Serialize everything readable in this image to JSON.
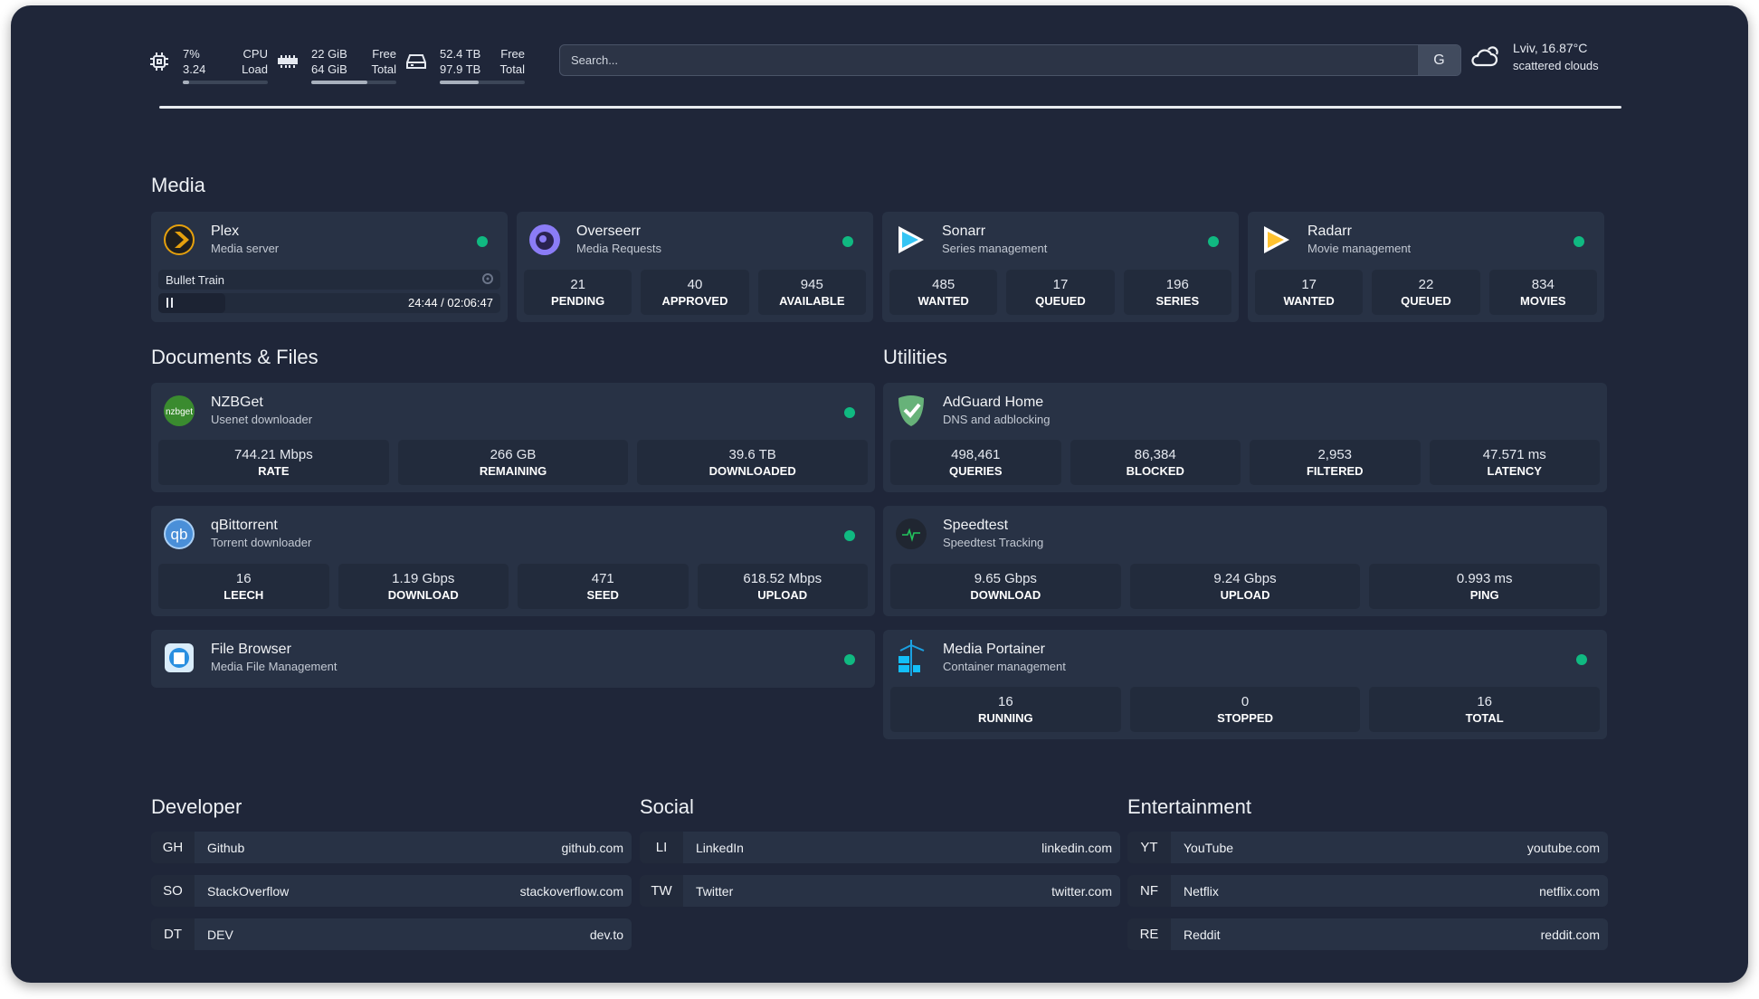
{
  "header": {
    "cpu": {
      "icon": "cpu-icon",
      "usage": "7%",
      "load": "3.24",
      "usage_label": "CPU",
      "load_label": "Load",
      "fill_percent": 7
    },
    "memory": {
      "icon": "memory-icon",
      "free": "22 GiB",
      "total": "64 GiB",
      "free_label": "Free",
      "total_label": "Total",
      "fill_percent": 66
    },
    "disk": {
      "icon": "disk-icon",
      "free": "52.4 TB",
      "total": "97.9 TB",
      "free_label": "Free",
      "total_label": "Total",
      "fill_percent": 46
    },
    "search": {
      "placeholder": "Search...",
      "engine_button": "G"
    },
    "weather": {
      "icon": "cloud-icon",
      "location_temp": "Lviv, 16.87°C",
      "condition": "scattered clouds"
    }
  },
  "colors": {
    "background": "#1f2639",
    "card": "#283245",
    "status_online": "#10b981"
  },
  "sections": {
    "media": "Media",
    "documents": "Documents & Files",
    "utilities": "Utilities",
    "developer": "Developer",
    "social": "Social",
    "entertainment": "Entertainment"
  },
  "services": [
    {
      "id": "plex",
      "icon": "plex-icon",
      "title": "Plex",
      "subtitle": "Media server",
      "status": "online",
      "now_playing": {
        "title": "Bullet Train",
        "time": "24:44 / 02:06:47",
        "progress_percent": 19.5
      }
    },
    {
      "id": "overseerr",
      "icon": "overseerr-icon",
      "title": "Overseerr",
      "subtitle": "Media Requests",
      "status": "online",
      "stats": [
        {
          "value": "21",
          "label": "PENDING"
        },
        {
          "value": "40",
          "label": "APPROVED"
        },
        {
          "value": "945",
          "label": "AVAILABLE"
        }
      ]
    },
    {
      "id": "sonarr",
      "icon": "sonarr-icon",
      "title": "Sonarr",
      "subtitle": "Series management",
      "status": "online",
      "stats": [
        {
          "value": "485",
          "label": "WANTED"
        },
        {
          "value": "17",
          "label": "QUEUED"
        },
        {
          "value": "196",
          "label": "SERIES"
        }
      ]
    },
    {
      "id": "radarr",
      "icon": "radarr-icon",
      "title": "Radarr",
      "subtitle": "Movie management",
      "status": "online",
      "stats": [
        {
          "value": "17",
          "label": "WANTED"
        },
        {
          "value": "22",
          "label": "QUEUED"
        },
        {
          "value": "834",
          "label": "MOVIES"
        }
      ]
    },
    {
      "id": "nzbget",
      "icon": "nzbget-icon",
      "logo_text": "nzbget",
      "title": "NZBGet",
      "subtitle": "Usenet downloader",
      "status": "online",
      "stats": [
        {
          "value": "744.21 Mbps",
          "label": "RATE"
        },
        {
          "value": "266 GB",
          "label": "REMAINING"
        },
        {
          "value": "39.6 TB",
          "label": "DOWNLOADED"
        }
      ]
    },
    {
      "id": "qbittorrent",
      "icon": "qbittorrent-icon",
      "logo_text": "qb",
      "title": "qBittorrent",
      "subtitle": "Torrent downloader",
      "status": "online",
      "stats": [
        {
          "value": "16",
          "label": "LEECH"
        },
        {
          "value": "1.19 Gbps",
          "label": "DOWNLOAD"
        },
        {
          "value": "471",
          "label": "SEED"
        },
        {
          "value": "618.52 Mbps",
          "label": "UPLOAD"
        }
      ]
    },
    {
      "id": "filebrowser",
      "icon": "file-browser-icon",
      "title": "File Browser",
      "subtitle": "Media File Management",
      "status": "online"
    },
    {
      "id": "adguard",
      "icon": "adguard-shield-icon",
      "title": "AdGuard Home",
      "subtitle": "DNS and adblocking",
      "stats": [
        {
          "value": "498,461",
          "label": "QUERIES"
        },
        {
          "value": "86,384",
          "label": "BLOCKED"
        },
        {
          "value": "2,953",
          "label": "FILTERED"
        },
        {
          "value": "47.571 ms",
          "label": "LATENCY"
        }
      ]
    },
    {
      "id": "speedtest",
      "icon": "speedtest-pulse-icon",
      "title": "Speedtest",
      "subtitle": "Speedtest Tracking",
      "stats": [
        {
          "value": "9.65 Gbps",
          "label": "DOWNLOAD"
        },
        {
          "value": "9.24 Gbps",
          "label": "UPLOAD"
        },
        {
          "value": "0.993 ms",
          "label": "PING"
        }
      ]
    },
    {
      "id": "portainer",
      "icon": "portainer-crane-icon",
      "title": "Media Portainer",
      "subtitle": "Container management",
      "status": "online",
      "stats": [
        {
          "value": "16",
          "label": "RUNNING"
        },
        {
          "value": "0",
          "label": "STOPPED"
        },
        {
          "value": "16",
          "label": "TOTAL"
        }
      ]
    }
  ],
  "bookmarks": {
    "developer": [
      {
        "abbr": "GH",
        "name": "Github",
        "url": "github.com"
      },
      {
        "abbr": "SO",
        "name": "StackOverflow",
        "url": "stackoverflow.com"
      },
      {
        "abbr": "DT",
        "name": "DEV",
        "url": "dev.to"
      }
    ],
    "social": [
      {
        "abbr": "LI",
        "name": "LinkedIn",
        "url": "linkedin.com"
      },
      {
        "abbr": "TW",
        "name": "Twitter",
        "url": "twitter.com"
      }
    ],
    "entertainment": [
      {
        "abbr": "YT",
        "name": "YouTube",
        "url": "youtube.com"
      },
      {
        "abbr": "NF",
        "name": "Netflix",
        "url": "netflix.com"
      },
      {
        "abbr": "RE",
        "name": "Reddit",
        "url": "reddit.com"
      }
    ]
  }
}
